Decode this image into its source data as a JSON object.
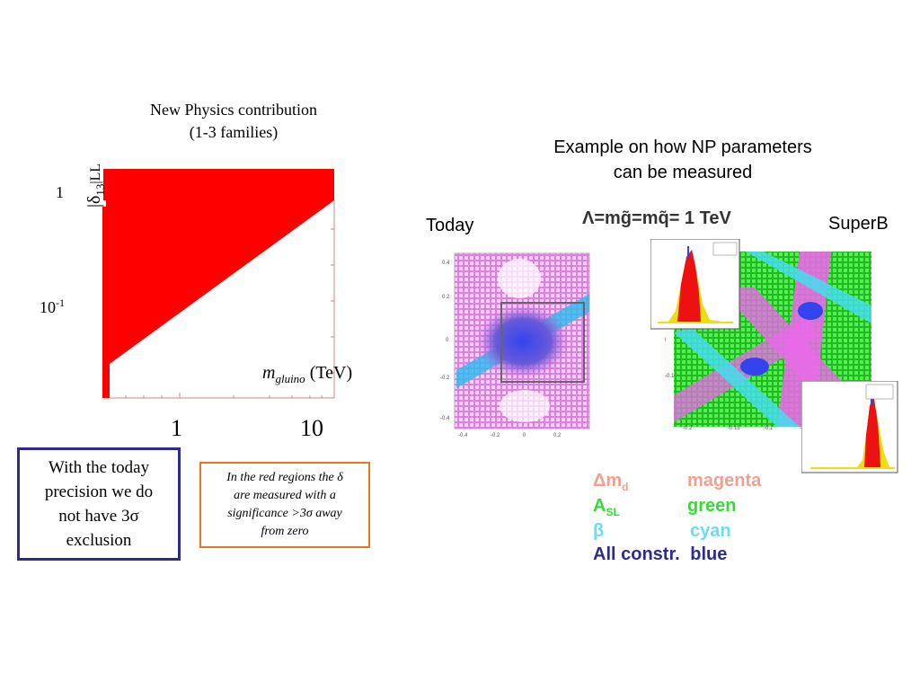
{
  "left_panel": {
    "title_line1": "New Physics contribution",
    "title_line2": "(1-3 families)",
    "y_label_main": "|δ",
    "y_label_sub": "13",
    "y_label_tail": "|LL",
    "y_tick_1": "1",
    "y_tick_01_base": "10",
    "y_tick_01_exp": "-1",
    "x_label_var": "m",
    "x_label_sub": "gluino",
    "x_label_unit": " (TeV)",
    "x_tick_1": "1",
    "x_tick_10": "10",
    "colors": {
      "region": "#ff0000",
      "axis": "#cc6666"
    }
  },
  "note_blue": {
    "text_line1": "With the today",
    "text_line2": "precision we do",
    "text_line3": "not have 3σ",
    "text_line4": "exclusion",
    "border_color": "#2b2c8e"
  },
  "note_orange": {
    "text_line1": "In the red regions the  δ",
    "text_line2": "are measured with a",
    "text_line3": "significance >3σ  away",
    "text_line4": "from zero",
    "border_color": "#e87722"
  },
  "right_panel": {
    "title_line1": "Example on how NP parameters",
    "title_line2": "can be measured",
    "today_label": "Today",
    "superb_label": "SuperB",
    "lambda_label": "Λ=mg̃=mq̃= 1 TeV"
  },
  "legend": [
    {
      "label": "Δm",
      "sub": "d",
      "value": "magenta",
      "color": "#f0a090"
    },
    {
      "label": "A",
      "sub": "SL",
      "value": "green",
      "color": "#33dd33"
    },
    {
      "label": "β",
      "sub": "",
      "value": "cyan",
      "color": "#66ddff"
    },
    {
      "label": "All constr.",
      "sub": "",
      "value": "blue",
      "color": "#2b2c8e"
    }
  ],
  "chart_data": {
    "type": "area",
    "x_scale": "log",
    "y_scale": "log",
    "xlabel": "m_gluino (TeV)",
    "ylabel": "|δ13|LL",
    "x_ticks": [
      "1",
      "10"
    ],
    "y_ticks": [
      "1",
      "10^-1"
    ],
    "region": "red area above a diagonal boundary rising with gluino mass",
    "title": "New Physics contribution (1-3 families)"
  }
}
